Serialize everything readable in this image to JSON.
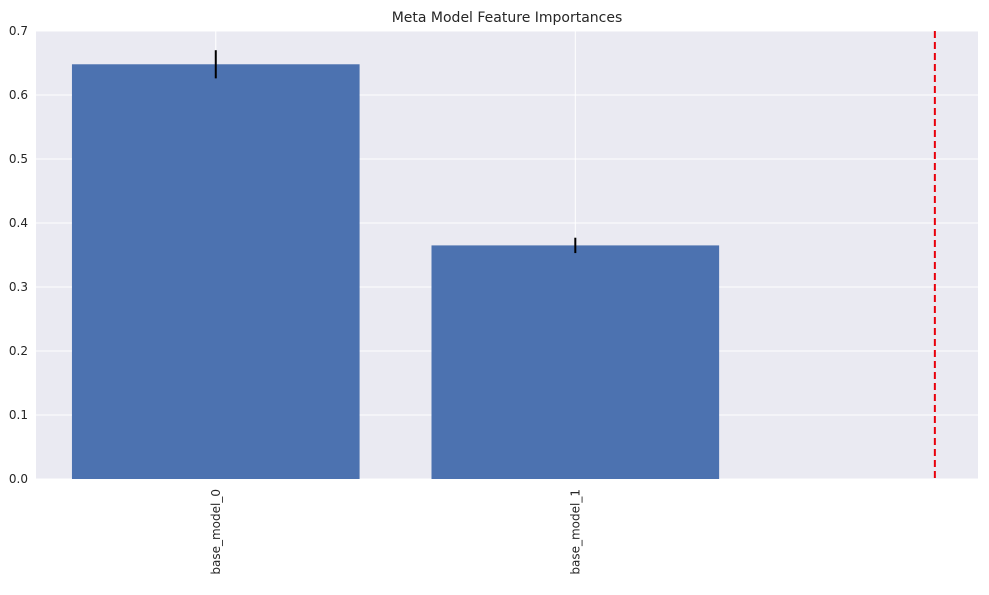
{
  "chart_data": {
    "type": "bar",
    "title": "Meta Model Feature Importances",
    "xlabel": "",
    "ylabel": "",
    "categories": [
      "base_model_0",
      "base_model_1"
    ],
    "values": [
      0.648,
      0.365
    ],
    "error_bars": [
      0.022,
      0.012
    ],
    "ylim": [
      0,
      0.7
    ],
    "yticks": [
      "0.0",
      "0.1",
      "0.2",
      "0.3",
      "0.4",
      "0.5",
      "0.6",
      "0.7"
    ],
    "reference_line": {
      "orientation": "vertical",
      "style": "dashed",
      "color": "#e8000b"
    },
    "grid": true,
    "colors": {
      "bar": "#4c72b0",
      "error_bar": "#000000",
      "plot_background": "#eaeaf2",
      "grid": "#ffffff"
    }
  }
}
